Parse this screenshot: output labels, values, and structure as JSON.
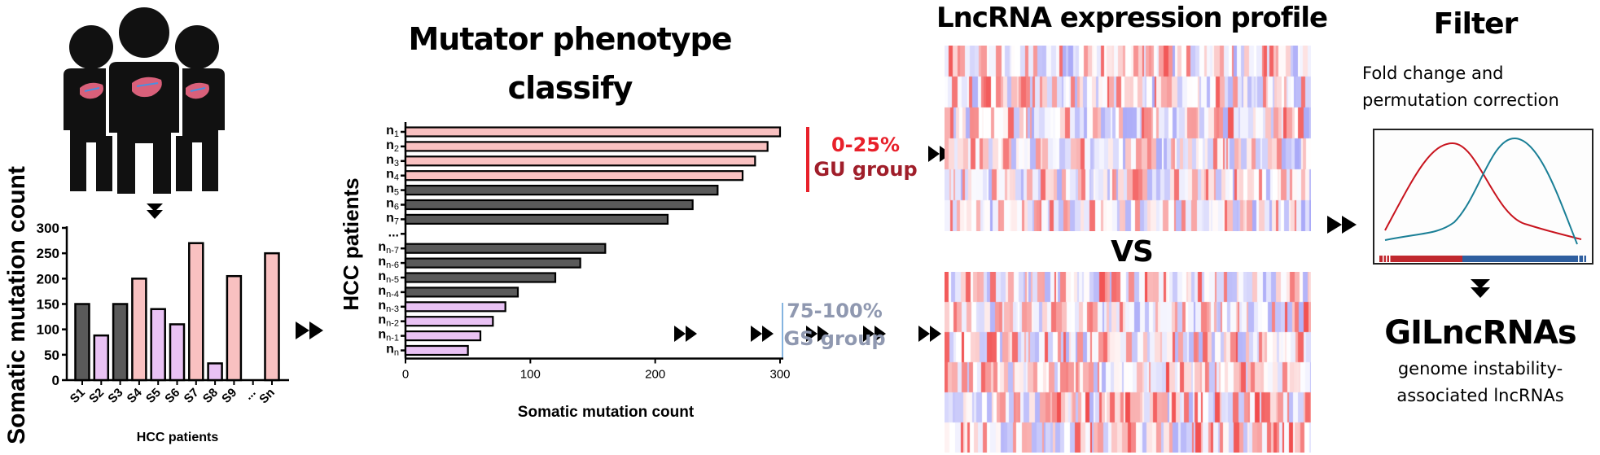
{
  "colors": {
    "pink": "#f9c1c1",
    "gray": "#5a5a5a",
    "lilac": "#e9c2f4",
    "gu_red": "#e8202a",
    "gu_dark": "#a01e2a",
    "gs_blue": "#5b9bd5",
    "gs_text": "#8f98b0",
    "curve_red": "#c8141e",
    "curve_teal": "#1a7f96",
    "rug_red": "#c0282e",
    "rug_blue": "#2f5f9f"
  },
  "left_chart_labels": {
    "ylabel": "Somatic mutation count",
    "xlabel": "HCC patients"
  },
  "middle": {
    "title_line1": "Mutator phenotype",
    "title_line2": "classify",
    "ylabel": "HCC patients",
    "xlabel": "Somatic mutation count",
    "gu_pct": "0-25%",
    "gu_group": "GU group",
    "gs_pct": "75-100%",
    "gs_group": "GS group"
  },
  "heatmap": {
    "title": "LncRNA expression profile",
    "vs": "VS"
  },
  "filter": {
    "title": "Filter",
    "desc_line1": "Fold change and",
    "desc_line2": "permutation correction"
  },
  "result": {
    "title": "GILncRNAs",
    "desc_line1": "genome instability-",
    "desc_line2": "associated lncRNAs"
  },
  "chart_data": [
    {
      "type": "bar",
      "title": "",
      "xlabel": "HCC patients",
      "ylabel": "Somatic mutation count",
      "categories": [
        "S1",
        "S2",
        "S3",
        "S4",
        "S5",
        "S6",
        "S7",
        "S8",
        "S9",
        "...",
        "Sn"
      ],
      "values": [
        150,
        88,
        150,
        200,
        140,
        110,
        270,
        33,
        205,
        null,
        250
      ],
      "groups": [
        "gray",
        "lilac",
        "gray",
        "pink",
        "lilac",
        "lilac",
        "pink",
        "lilac",
        "pink",
        null,
        "pink"
      ],
      "ylim": [
        0,
        300
      ],
      "yticks": [
        0,
        50,
        100,
        150,
        200,
        250,
        300
      ]
    },
    {
      "type": "bar",
      "orientation": "horizontal",
      "title": "Mutator phenotype classify",
      "xlabel": "Somatic mutation count",
      "ylabel": "HCC patients",
      "categories": [
        "n1",
        "n2",
        "n3",
        "n4",
        "n5",
        "n6",
        "n7",
        "...",
        "nn-7",
        "nn-6",
        "nn-5",
        "nn-4",
        "nn-3",
        "nn-2",
        "nn-1",
        "nn"
      ],
      "category_subscripts": [
        "1",
        "2",
        "3",
        "4",
        "5",
        "6",
        "7",
        "",
        "n-7",
        "n-6",
        "n-5",
        "n-4",
        "n-3",
        "n-2",
        "n-1",
        "n"
      ],
      "values": [
        300,
        290,
        280,
        270,
        250,
        230,
        210,
        null,
        160,
        140,
        120,
        90,
        80,
        70,
        60,
        50
      ],
      "groups": [
        "pink",
        "pink",
        "pink",
        "pink",
        "gray",
        "gray",
        "gray",
        null,
        "gray",
        "gray",
        "gray",
        "gray",
        "lilac",
        "lilac",
        "lilac",
        "lilac"
      ],
      "xlim": [
        0,
        300
      ],
      "xticks": [
        0,
        100,
        200,
        300
      ]
    }
  ]
}
